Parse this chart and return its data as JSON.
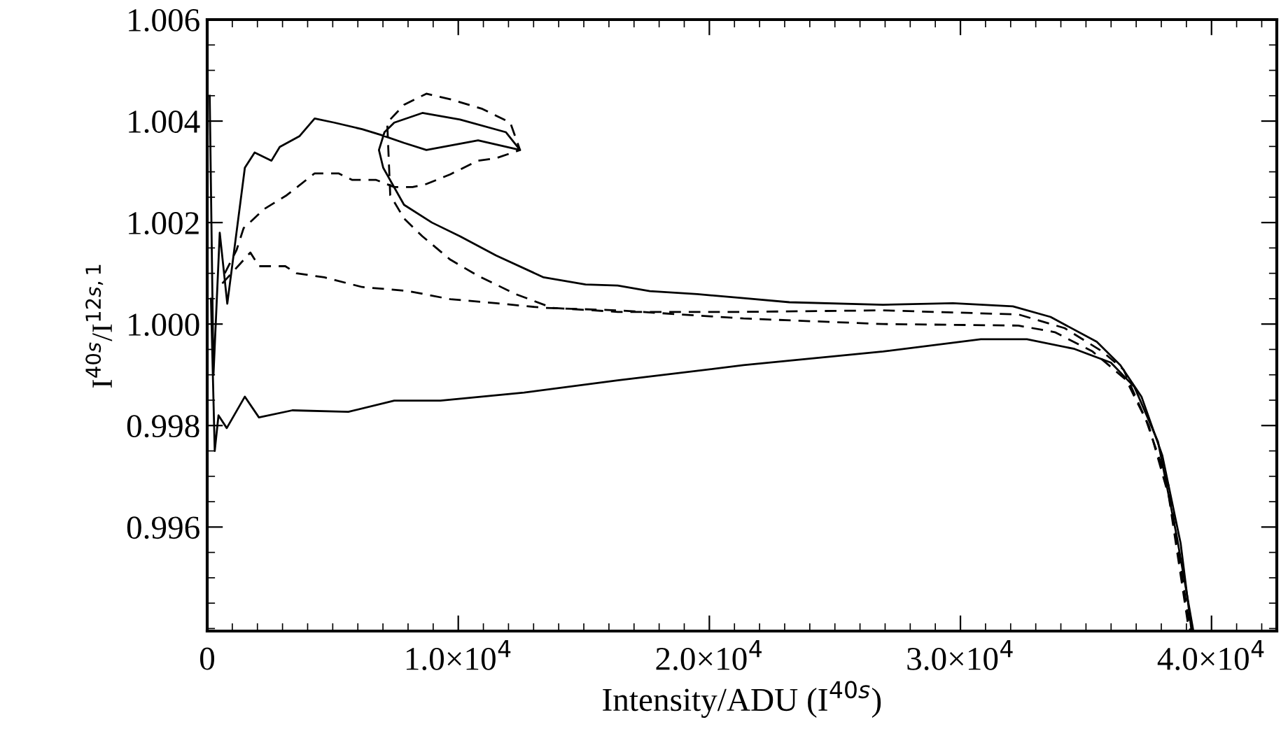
{
  "chart_data": {
    "type": "line",
    "xlabel": "Intensity/ADU (I$^{40s}$)",
    "ylabel": "I$^{40s}$/I$^{12s,1}$",
    "xlim": [
      0,
      42600
    ],
    "ylim": [
      0.99395,
      1.006
    ],
    "xticks": [
      0,
      {
        "value": 10000,
        "label": "1.0×10$^{4}$"
      },
      {
        "value": 20000,
        "label": "2.0×10$^{4}$"
      },
      {
        "value": 30000,
        "label": "3.0×10$^{4}$"
      },
      {
        "value": 40000,
        "label": "4.0×10$^{4}$"
      }
    ],
    "yticks": [
      {
        "value": 0.996,
        "label": "0.996"
      },
      {
        "value": 0.998,
        "label": "0.998"
      },
      {
        "value": 1.0,
        "label": "1.000"
      },
      {
        "value": 1.002,
        "label": "1.002"
      },
      {
        "value": 1.004,
        "label": "1.004"
      },
      {
        "value": 1.006,
        "label": "1.006"
      }
    ],
    "grid": false,
    "legend": false,
    "marker": "none",
    "series": [
      {
        "color": "#000000",
        "line_style": "solid",
        "x": [
          150,
          300,
          450,
          779,
          1500,
          2060,
          3390,
          5620,
          7450,
          9290,
          12620,
          16350,
          21360,
          26920,
          30810,
          32650,
          34540,
          35990,
          36930,
          37870,
          38600,
          39270
        ],
        "values": [
          1.0005,
          0.9975,
          0.9982,
          0.99795,
          0.99857,
          0.99816,
          0.9983,
          0.99827,
          0.99849,
          0.99849,
          0.99865,
          0.99889,
          0.99919,
          0.99946,
          0.9997,
          0.9997,
          0.99951,
          0.99924,
          0.99876,
          0.99768,
          0.99586,
          0.99397
        ]
      },
      {
        "color": "#000000",
        "line_style": "solid",
        "x": [
          100,
          250,
          500,
          800,
          1500,
          1890,
          2560,
          2890,
          3670,
          4280,
          5060,
          6170,
          6900,
          7840,
          8730,
          10790,
          12460,
          11900,
          10070,
          8570,
          7450,
          7060,
          6840,
          7010,
          7840,
          8950,
          10070,
          11510,
          13400,
          15070,
          16350,
          17630,
          19520,
          21360,
          23190,
          26920,
          29700,
          32090,
          33590,
          35430,
          36370,
          37210,
          38040,
          38770,
          39200
        ],
        "values": [
          1.0045,
          0.999,
          1.0018,
          1.0004,
          1.00308,
          1.00338,
          1.00322,
          1.00349,
          1.0037,
          1.00405,
          1.00397,
          1.00384,
          1.00373,
          1.00357,
          1.00343,
          1.00362,
          1.00343,
          1.00378,
          1.00403,
          1.00416,
          1.00397,
          1.00378,
          1.00343,
          1.00308,
          1.00235,
          1.002,
          1.00173,
          1.00135,
          1.00092,
          1.00078,
          1.00076,
          1.00065,
          1.00059,
          1.00051,
          1.00043,
          1.00038,
          1.00041,
          1.00035,
          1.00014,
          0.99965,
          0.99919,
          0.99857,
          0.99741,
          0.99568,
          0.99397
        ]
      },
      {
        "color": "#000000",
        "line_style": "dashed",
        "x": [
          600,
          1720,
          2060,
          3110,
          3560,
          4670,
          6170,
          8010,
          9680,
          11510,
          13400,
          16350,
          21360,
          26920,
          32310,
          33760,
          35260,
          36600,
          37500,
          38300,
          39100
        ],
        "values": [
          1.0008,
          1.00141,
          1.00114,
          1.00114,
          1.001,
          1.00092,
          1.00073,
          1.00065,
          1.00049,
          1.00041,
          1.00032,
          1.00027,
          1.00011,
          1.0,
          0.99997,
          0.99984,
          0.99946,
          0.9989,
          0.998,
          0.9966,
          0.99397
        ]
      },
      {
        "color": "#000000",
        "line_style": "dashed",
        "x": [
          700,
          1170,
          1450,
          2280,
          3170,
          4280,
          5230,
          5780,
          6730,
          7450,
          8180,
          8730,
          9680,
          10790,
          11510,
          12460,
          12070,
          10960,
          9680,
          8730,
          7840,
          7170,
          7290,
          7840,
          8570,
          9680,
          10790,
          12290,
          13740,
          16350,
          21360,
          26920,
          32310,
          34150,
          35650,
          36500,
          37400,
          38300,
          39150
        ],
        "values": [
          1.001,
          1.00146,
          1.00189,
          1.00227,
          1.00254,
          1.00297,
          1.00297,
          1.00284,
          1.00284,
          1.0027,
          1.0027,
          1.00276,
          1.00295,
          1.00322,
          1.00327,
          1.00343,
          1.00397,
          1.00424,
          1.00443,
          1.00454,
          1.00432,
          1.00397,
          1.00254,
          1.00208,
          1.00173,
          1.00127,
          1.00095,
          1.00059,
          1.00032,
          1.00024,
          1.00024,
          1.00027,
          1.00019,
          0.99992,
          0.99946,
          0.9991,
          0.9981,
          0.9968,
          0.99397
        ]
      }
    ]
  }
}
